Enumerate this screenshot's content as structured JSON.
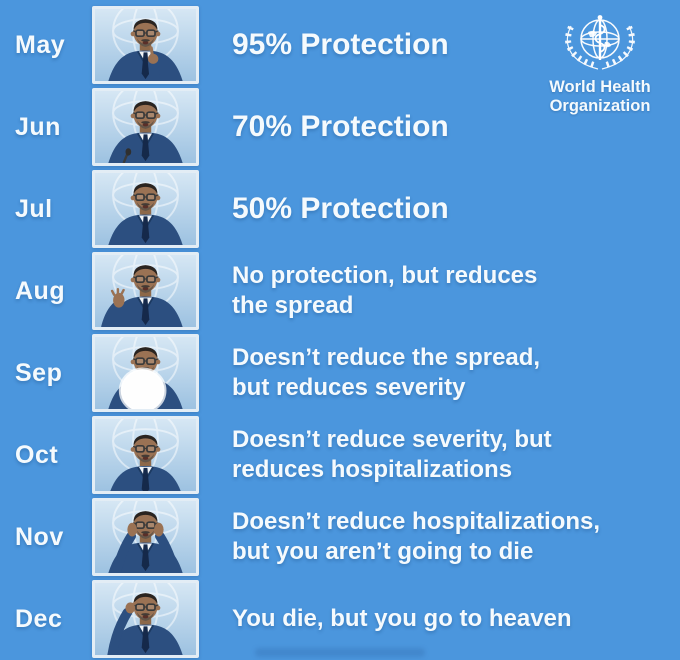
{
  "colors": {
    "background": "#4b96dd",
    "text": "#f5fafd",
    "photo_border": "#e3edf5",
    "photo_backdrop": "#b9d4ea",
    "white_circle": "#fefefe"
  },
  "who_logo": {
    "emblem_icon": "who-emblem-icon",
    "line1": "World Health",
    "line2": "Organization"
  },
  "rows": [
    {
      "month": "May",
      "style": "headline",
      "lines": [
        "95% Protection"
      ],
      "photo": {
        "pose": "pointing-up",
        "description": "man in blue suit and glasses pointing upward while speaking at press conference, UN emblem backdrop"
      }
    },
    {
      "month": "Jun",
      "style": "headline",
      "lines": [
        "70% Protection"
      ],
      "photo": {
        "pose": "speaking",
        "description": "man in suit speaking into microphone at press conference"
      }
    },
    {
      "month": "Jul",
      "style": "headline",
      "lines": [
        "50% Protection"
      ],
      "photo": {
        "pose": "talking",
        "description": "man in suit gesturing while talking"
      }
    },
    {
      "month": "Aug",
      "style": "body",
      "lines": [
        "No protection, but reduces",
        "the spread"
      ],
      "photo": {
        "pose": "open-hand",
        "description": "man gesturing with raised open hand, UN emblem backdrop"
      }
    },
    {
      "month": "Sep",
      "style": "body",
      "lines": [
        "Doesn’t reduce the spread,",
        "but reduces severity"
      ],
      "photo": {
        "pose": "drinking-white-circle",
        "description": "man drinking from a glass, large white circle over centre of photo"
      }
    },
    {
      "month": "Oct",
      "style": "body",
      "lines": [
        "Doesn’t reduce severity, but",
        "reduces hospitalizations"
      ],
      "photo": {
        "pose": "leaning-forward",
        "description": "man leaning forward at desk looking down"
      }
    },
    {
      "month": "Nov",
      "style": "body",
      "lines": [
        "Doesn’t reduce hospitalizations,",
        "but you aren’t going to die"
      ],
      "photo": {
        "pose": "hands-on-head",
        "description": "man pressing both hands to his temples, WHO backdrop"
      }
    },
    {
      "month": "Dec",
      "style": "body",
      "lines": [
        "You die, but you go to heaven"
      ],
      "photo": {
        "pose": "pointing-at-head",
        "description": "man pointing a finger at his own head"
      }
    }
  ]
}
